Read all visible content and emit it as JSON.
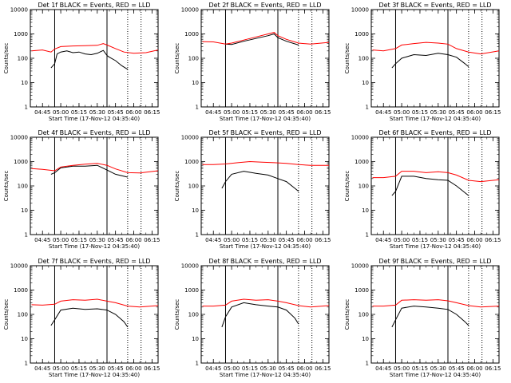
{
  "chart_data": [
    {
      "type": "line",
      "title": "Det 1f BLACK = Events, RED = LLD",
      "xlabel": "Start Time (17-Nov-12 04:35:40)",
      "ylabel": "Counts/sec",
      "xlim": [
        "04:35",
        "06:20"
      ],
      "ylim": [
        1,
        10000
      ],
      "yscale": "log",
      "x_ticks": [
        "04:45",
        "05:00",
        "05:15",
        "05:30",
        "05:45",
        "06:00",
        "06:15"
      ],
      "y_ticks": [
        "1",
        "10",
        "100",
        "1000",
        "10000"
      ],
      "vlines_solid": [
        "04:55",
        "05:38"
      ],
      "vlines_dotted": [
        "05:55",
        "06:06"
      ],
      "series": [
        {
          "name": "Events",
          "color": "#000000",
          "x": [
            "04:52",
            "04:55",
            "04:57",
            "05:00",
            "05:05",
            "05:10",
            "05:15",
            "05:20",
            "05:25",
            "05:30",
            "05:35",
            "05:38",
            "05:40",
            "05:45",
            "05:50",
            "05:55"
          ],
          "y": [
            40,
            60,
            150,
            180,
            200,
            170,
            180,
            150,
            140,
            160,
            210,
            130,
            110,
            80,
            50,
            35
          ]
        },
        {
          "name": "LLD",
          "color": "#ff0000",
          "x": [
            "04:36",
            "04:45",
            "04:52",
            "04:55",
            "05:00",
            "05:10",
            "05:20",
            "05:30",
            "05:35",
            "05:38",
            "05:45",
            "05:52",
            "06:00",
            "06:10",
            "06:20"
          ],
          "y": [
            200,
            220,
            180,
            240,
            300,
            320,
            330,
            340,
            400,
            350,
            250,
            180,
            160,
            170,
            220
          ]
        }
      ]
    },
    {
      "type": "line",
      "title": "Det 2f BLACK = Events, RED = LLD",
      "xlabel": "Start Time (17-Nov-12 04:35:40)",
      "ylabel": "Counts/sec",
      "xlim": [
        "04:35",
        "06:20"
      ],
      "ylim": [
        1,
        10000
      ],
      "yscale": "log",
      "x_ticks": [
        "04:45",
        "05:00",
        "05:15",
        "05:30",
        "05:45",
        "06:00",
        "06:15"
      ],
      "y_ticks": [
        "1",
        "10",
        "100",
        "1000",
        "10000"
      ],
      "vlines_solid": [
        "04:55",
        "05:38"
      ],
      "vlines_dotted": [
        "05:55",
        "06:06"
      ],
      "series": [
        {
          "name": "Events",
          "color": "#000000",
          "x": [
            "04:55",
            "05:00",
            "05:10",
            "05:20",
            "05:30",
            "05:35",
            "05:38",
            "05:45",
            "05:55"
          ],
          "y": [
            380,
            370,
            500,
            650,
            850,
            1000,
            700,
            500,
            350
          ]
        },
        {
          "name": "LLD",
          "color": "#ff0000",
          "x": [
            "04:36",
            "04:45",
            "04:55",
            "05:00",
            "05:10",
            "05:20",
            "05:30",
            "05:35",
            "05:38",
            "05:45",
            "05:55",
            "06:05",
            "06:20"
          ],
          "y": [
            480,
            470,
            380,
            420,
            560,
            750,
            1000,
            1150,
            850,
            600,
            420,
            380,
            450
          ]
        }
      ]
    },
    {
      "type": "line",
      "title": "Det 3f BLACK = Events, RED = LLD",
      "xlabel": "Start Time (17-Nov-12 04:35:40)",
      "ylabel": "Counts/sec",
      "xlim": [
        "04:35",
        "06:20"
      ],
      "ylim": [
        1,
        10000
      ],
      "yscale": "log",
      "x_ticks": [
        "04:45",
        "05:00",
        "05:15",
        "05:30",
        "05:45",
        "06:00",
        "06:15"
      ],
      "y_ticks": [
        "1",
        "10",
        "100",
        "1000",
        "10000"
      ],
      "vlines_solid": [
        "04:55",
        "05:38"
      ],
      "vlines_dotted": [
        "05:55",
        "06:06"
      ],
      "series": [
        {
          "name": "Events",
          "color": "#000000",
          "x": [
            "04:52",
            "04:55",
            "05:00",
            "05:10",
            "05:20",
            "05:30",
            "05:38",
            "05:45",
            "05:52",
            "05:55"
          ],
          "y": [
            40,
            60,
            100,
            140,
            130,
            160,
            140,
            110,
            60,
            45
          ]
        },
        {
          "name": "LLD",
          "color": "#ff0000",
          "x": [
            "04:36",
            "04:45",
            "04:55",
            "05:00",
            "05:10",
            "05:20",
            "05:30",
            "05:38",
            "05:45",
            "05:55",
            "06:05",
            "06:20"
          ],
          "y": [
            220,
            200,
            250,
            350,
            400,
            450,
            420,
            380,
            250,
            180,
            150,
            200
          ]
        }
      ]
    },
    {
      "type": "line",
      "title": "Det 4f BLACK = Events, RED = LLD",
      "xlabel": "Start Time (17-Nov-12 04:35:40)",
      "ylabel": "Counts/sec",
      "xlim": [
        "04:35",
        "06:20"
      ],
      "ylim": [
        1,
        10000
      ],
      "yscale": "log",
      "x_ticks": [
        "04:45",
        "05:00",
        "05:15",
        "05:30",
        "05:45",
        "06:00",
        "06:15"
      ],
      "y_ticks": [
        "1",
        "10",
        "100",
        "1000",
        "10000"
      ],
      "vlines_solid": [
        "04:55",
        "05:38"
      ],
      "vlines_dotted": [
        "05:55",
        "06:06"
      ],
      "series": [
        {
          "name": "Events",
          "color": "#000000",
          "x": [
            "04:52",
            "04:55",
            "05:00",
            "05:10",
            "05:20",
            "05:30",
            "05:38",
            "05:45",
            "05:55"
          ],
          "y": [
            300,
            350,
            550,
            650,
            650,
            700,
            450,
            300,
            230
          ]
        },
        {
          "name": "LLD",
          "color": "#ff0000",
          "x": [
            "04:36",
            "04:45",
            "04:55",
            "05:00",
            "05:10",
            "05:20",
            "05:30",
            "05:38",
            "05:45",
            "05:55",
            "06:05",
            "06:20"
          ],
          "y": [
            520,
            480,
            420,
            600,
            700,
            780,
            850,
            700,
            500,
            350,
            340,
            420
          ]
        }
      ]
    },
    {
      "type": "line",
      "title": "Det 5f BLACK = Events, RED = LLD",
      "xlabel": "Start Time (17-Nov-12 04:35:40)",
      "ylabel": "Counts/sec",
      "xlim": [
        "04:35",
        "06:20"
      ],
      "ylim": [
        1,
        10000
      ],
      "yscale": "log",
      "x_ticks": [
        "04:45",
        "05:00",
        "05:15",
        "05:30",
        "05:45",
        "06:00",
        "06:15"
      ],
      "y_ticks": [
        "1",
        "10",
        "100",
        "1000",
        "10000"
      ],
      "vlines_solid": [
        "04:55",
        "05:38"
      ],
      "vlines_dotted": [
        "05:55",
        "06:06"
      ],
      "series": [
        {
          "name": "Events",
          "color": "#000000",
          "x": [
            "04:52",
            "04:55",
            "05:00",
            "05:10",
            "05:20",
            "05:30",
            "05:38",
            "05:45",
            "05:52",
            "05:55"
          ],
          "y": [
            80,
            150,
            300,
            400,
            330,
            280,
            200,
            150,
            80,
            60
          ]
        },
        {
          "name": "LLD",
          "color": "#ff0000",
          "x": [
            "04:36",
            "04:45",
            "04:55",
            "05:05",
            "05:15",
            "05:25",
            "05:35",
            "05:45",
            "05:55",
            "06:05",
            "06:20"
          ],
          "y": [
            750,
            750,
            800,
            900,
            1000,
            950,
            900,
            850,
            750,
            700,
            700
          ]
        }
      ]
    },
    {
      "type": "line",
      "title": "Det 6f BLACK = Events, RED = LLD",
      "xlabel": "Start Time (17-Nov-12 04:35:40)",
      "ylabel": "Counts/sec",
      "xlim": [
        "04:35",
        "06:20"
      ],
      "ylim": [
        1,
        10000
      ],
      "yscale": "log",
      "x_ticks": [
        "04:45",
        "05:00",
        "05:15",
        "05:30",
        "05:45",
        "06:00",
        "06:15"
      ],
      "y_ticks": [
        "1",
        "10",
        "100",
        "1000",
        "10000"
      ],
      "vlines_solid": [
        "04:55",
        "05:38"
      ],
      "vlines_dotted": [
        "05:55",
        "06:06"
      ],
      "series": [
        {
          "name": "Events",
          "color": "#000000",
          "x": [
            "04:52",
            "04:55",
            "05:00",
            "05:10",
            "05:20",
            "05:30",
            "05:38",
            "05:45",
            "05:55"
          ],
          "y": [
            40,
            60,
            250,
            250,
            200,
            180,
            170,
            100,
            40
          ]
        },
        {
          "name": "LLD",
          "color": "#ff0000",
          "x": [
            "04:36",
            "04:45",
            "04:55",
            "05:00",
            "05:10",
            "05:20",
            "05:30",
            "05:38",
            "05:45",
            "05:55",
            "06:05",
            "06:20"
          ],
          "y": [
            220,
            220,
            250,
            400,
            400,
            350,
            380,
            350,
            280,
            170,
            150,
            180
          ]
        }
      ]
    },
    {
      "type": "line",
      "title": "Det 7f BLACK = Events, RED = LLD",
      "xlabel": "Start Time (17-Nov-12 04:35:40)",
      "ylabel": "Counts/sec",
      "xlim": [
        "04:35",
        "06:20"
      ],
      "ylim": [
        1,
        10000
      ],
      "yscale": "log",
      "x_ticks": [
        "04:45",
        "05:00",
        "05:15",
        "05:30",
        "05:45",
        "06:00",
        "06:15"
      ],
      "y_ticks": [
        "1",
        "10",
        "100",
        "1000",
        "10000"
      ],
      "vlines_solid": [
        "04:55",
        "05:38"
      ],
      "vlines_dotted": [
        "05:55",
        "06:06"
      ],
      "series": [
        {
          "name": "Events",
          "color": "#000000",
          "x": [
            "04:52",
            "04:55",
            "05:00",
            "05:10",
            "05:20",
            "05:30",
            "05:38",
            "05:45",
            "05:52",
            "05:55"
          ],
          "y": [
            35,
            60,
            150,
            180,
            160,
            170,
            150,
            100,
            50,
            30
          ]
        },
        {
          "name": "LLD",
          "color": "#ff0000",
          "x": [
            "04:36",
            "04:45",
            "04:55",
            "05:00",
            "05:10",
            "05:20",
            "05:30",
            "05:38",
            "05:45",
            "05:55",
            "06:05",
            "06:20"
          ],
          "y": [
            250,
            240,
            260,
            350,
            400,
            380,
            420,
            350,
            300,
            220,
            200,
            230
          ]
        }
      ]
    },
    {
      "type": "line",
      "title": "Det 8f BLACK = Events, RED = LLD",
      "xlabel": "Start Time (17-Nov-12 04:35:40)",
      "ylabel": "Counts/sec",
      "xlim": [
        "04:35",
        "06:20"
      ],
      "ylim": [
        1,
        10000
      ],
      "yscale": "log",
      "x_ticks": [
        "04:45",
        "05:00",
        "05:15",
        "05:30",
        "05:45",
        "06:00",
        "06:15"
      ],
      "y_ticks": [
        "1",
        "10",
        "100",
        "1000",
        "10000"
      ],
      "vlines_solid": [
        "04:55",
        "05:38"
      ],
      "vlines_dotted": [
        "05:55",
        "06:06"
      ],
      "series": [
        {
          "name": "Events",
          "color": "#000000",
          "x": [
            "04:52",
            "04:55",
            "05:00",
            "05:10",
            "05:20",
            "05:30",
            "05:38",
            "05:45",
            "05:52",
            "05:55"
          ],
          "y": [
            30,
            80,
            200,
            300,
            250,
            220,
            200,
            150,
            70,
            40
          ]
        },
        {
          "name": "LLD",
          "color": "#ff0000",
          "x": [
            "04:36",
            "04:45",
            "04:55",
            "05:00",
            "05:10",
            "05:20",
            "05:30",
            "05:38",
            "05:45",
            "05:55",
            "06:05",
            "06:20"
          ],
          "y": [
            220,
            220,
            240,
            350,
            420,
            380,
            400,
            350,
            300,
            230,
            200,
            230
          ]
        }
      ]
    },
    {
      "type": "line",
      "title": "Det 9f BLACK = Events, RED = LLD",
      "xlabel": "Start Time (17-Nov-12 04:35:40)",
      "ylabel": "Counts/sec",
      "xlim": [
        "04:35",
        "06:20"
      ],
      "ylim": [
        1,
        10000
      ],
      "yscale": "log",
      "x_ticks": [
        "04:45",
        "05:00",
        "05:15",
        "05:30",
        "05:45",
        "06:00",
        "06:15"
      ],
      "y_ticks": [
        "1",
        "10",
        "100",
        "1000",
        "10000"
      ],
      "vlines_solid": [
        "04:55",
        "05:38"
      ],
      "vlines_dotted": [
        "05:55",
        "06:06"
      ],
      "series": [
        {
          "name": "Events",
          "color": "#000000",
          "x": [
            "04:52",
            "04:55",
            "05:00",
            "05:10",
            "05:20",
            "05:30",
            "05:38",
            "05:45",
            "05:52",
            "05:55"
          ],
          "y": [
            30,
            60,
            180,
            220,
            200,
            180,
            160,
            100,
            50,
            35
          ]
        },
        {
          "name": "LLD",
          "color": "#ff0000",
          "x": [
            "04:36",
            "04:45",
            "04:55",
            "05:00",
            "05:10",
            "05:20",
            "05:30",
            "05:38",
            "05:45",
            "05:55",
            "06:05",
            "06:20"
          ],
          "y": [
            220,
            220,
            240,
            380,
            400,
            380,
            400,
            360,
            300,
            230,
            200,
            220
          ]
        }
      ]
    }
  ]
}
